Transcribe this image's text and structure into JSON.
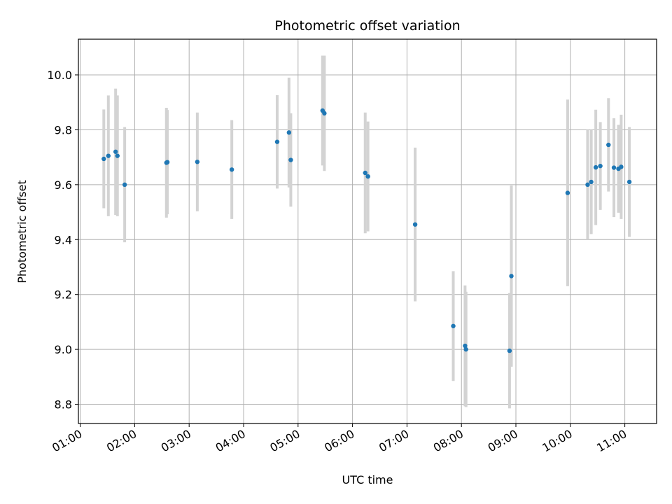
{
  "chart_data": {
    "type": "scatter",
    "title": "Photometric offset variation",
    "xlabel": "UTC time",
    "ylabel": "Photometric offset",
    "xlim": [
      "00:58",
      "11:35"
    ],
    "ylim": [
      8.73,
      10.13
    ],
    "grid": true,
    "x_ticks": [
      "01:00",
      "02:00",
      "03:00",
      "04:00",
      "05:00",
      "06:00",
      "07:00",
      "08:00",
      "09:00",
      "10:00",
      "11:00"
    ],
    "y_ticks": [
      "8.8",
      "9.0",
      "9.2",
      "9.4",
      "9.6",
      "9.8",
      "10.0"
    ],
    "colors": {
      "points": "#1f77b4",
      "errorbars": "#d3d3d3",
      "grid": "#b0b0b0"
    },
    "points": [
      {
        "x": "01:26",
        "y": 9.694,
        "yerr": 0.18
      },
      {
        "x": "01:31",
        "y": 9.705,
        "yerr": 0.22
      },
      {
        "x": "01:39",
        "y": 9.72,
        "yerr": 0.23
      },
      {
        "x": "01:41",
        "y": 9.705,
        "yerr": 0.22
      },
      {
        "x": "01:49",
        "y": 9.6,
        "yerr": 0.21
      },
      {
        "x": "02:35",
        "y": 9.68,
        "yerr": 0.2
      },
      {
        "x": "02:36",
        "y": 9.682,
        "yerr": 0.19
      },
      {
        "x": "03:09",
        "y": 9.683,
        "yerr": 0.18
      },
      {
        "x": "03:47",
        "y": 9.655,
        "yerr": 0.18
      },
      {
        "x": "04:37",
        "y": 9.756,
        "yerr": 0.17
      },
      {
        "x": "04:50",
        "y": 9.79,
        "yerr": 0.2
      },
      {
        "x": "04:52",
        "y": 9.69,
        "yerr": 0.17
      },
      {
        "x": "05:27",
        "y": 9.87,
        "yerr": 0.2
      },
      {
        "x": "05:29",
        "y": 9.86,
        "yerr": 0.21
      },
      {
        "x": "06:14",
        "y": 9.643,
        "yerr": 0.22
      },
      {
        "x": "06:17",
        "y": 9.63,
        "yerr": 0.2
      },
      {
        "x": "07:09",
        "y": 9.455,
        "yerr": 0.28
      },
      {
        "x": "07:51",
        "y": 9.085,
        "yerr": 0.2
      },
      {
        "x": "08:04",
        "y": 9.013,
        "yerr": 0.22
      },
      {
        "x": "08:05",
        "y": 9.0,
        "yerr": 0.21
      },
      {
        "x": "08:53",
        "y": 8.995,
        "yerr": 0.21
      },
      {
        "x": "08:55",
        "y": 9.267,
        "yerr": 0.33
      },
      {
        "x": "09:57",
        "y": 9.57,
        "yerr": 0.34
      },
      {
        "x": "10:19",
        "y": 9.6,
        "yerr": 0.2
      },
      {
        "x": "10:23",
        "y": 9.61,
        "yerr": 0.19
      },
      {
        "x": "10:28",
        "y": 9.663,
        "yerr": 0.21
      },
      {
        "x": "10:33",
        "y": 9.668,
        "yerr": 0.16
      },
      {
        "x": "10:42",
        "y": 9.745,
        "yerr": 0.17
      },
      {
        "x": "10:48",
        "y": 9.662,
        "yerr": 0.18
      },
      {
        "x": "10:53",
        "y": 9.658,
        "yerr": 0.16
      },
      {
        "x": "10:56",
        "y": 9.665,
        "yerr": 0.19
      },
      {
        "x": "11:05",
        "y": 9.61,
        "yerr": 0.2
      }
    ]
  }
}
